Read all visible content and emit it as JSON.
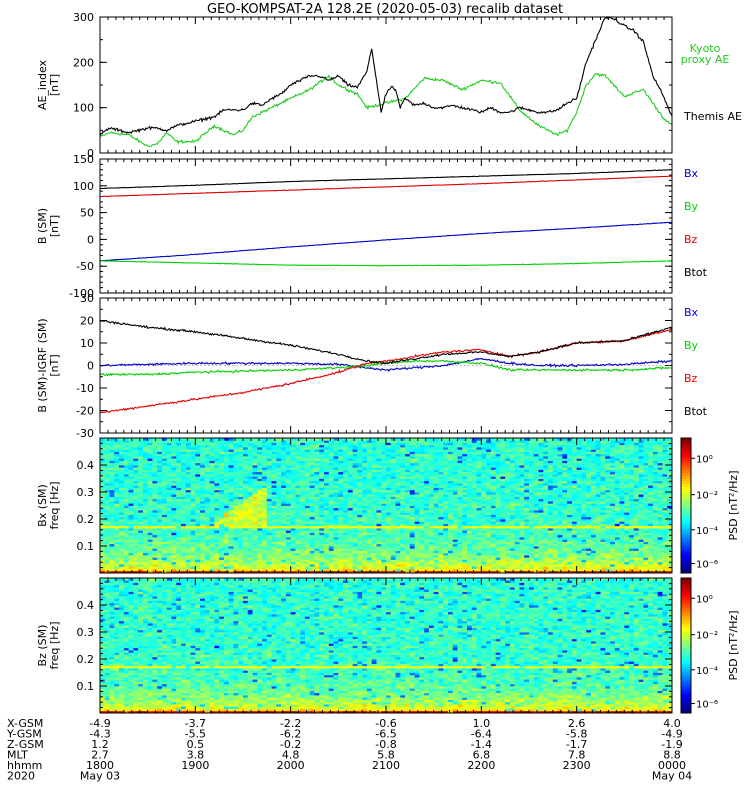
{
  "title": "GEO-KOMPSAT-2A 128.2E (2020-05-03) recalib dataset",
  "colors": {
    "black": "#000000",
    "red": "#e00000",
    "green": "#00d000",
    "blue": "#0000c8",
    "kyoto": "#22cc22"
  },
  "chart_data": [
    {
      "type": "line",
      "panel": "ae_index",
      "ylabel": "AE_index\n[nT]",
      "ylim": [
        0,
        300
      ],
      "yticks": [
        0,
        100,
        200,
        300
      ],
      "series": [
        {
          "name": "Themis AE",
          "color": "#000000",
          "x": [
            18.0,
            18.1,
            18.2,
            18.3,
            18.4,
            18.5,
            18.6,
            18.7,
            18.8,
            18.9,
            19.0,
            19.1,
            19.2,
            19.3,
            19.4,
            19.5,
            19.6,
            19.7,
            19.8,
            19.9,
            20.0,
            20.1,
            20.2,
            20.3,
            20.4,
            20.5,
            20.6,
            20.7,
            20.8,
            20.85,
            20.9,
            20.95,
            21.0,
            21.05,
            21.1,
            21.15,
            21.2,
            21.3,
            21.4,
            21.5,
            21.6,
            21.7,
            21.8,
            21.9,
            22.0,
            22.1,
            22.2,
            22.3,
            22.4,
            22.5,
            22.6,
            22.7,
            22.8,
            22.9,
            23.0,
            23.1,
            23.2,
            23.3,
            23.4,
            23.5,
            23.6,
            23.7,
            23.8,
            23.9,
            24.0
          ],
          "y": [
            40,
            55,
            50,
            45,
            50,
            55,
            55,
            50,
            60,
            65,
            70,
            75,
            80,
            95,
            95,
            95,
            110,
            105,
            120,
            130,
            150,
            160,
            170,
            170,
            160,
            170,
            150,
            145,
            180,
            230,
            160,
            90,
            130,
            145,
            140,
            100,
            120,
            105,
            110,
            100,
            100,
            105,
            100,
            95,
            90,
            100,
            90,
            90,
            100,
            95,
            90,
            90,
            95,
            110,
            120,
            200,
            250,
            300,
            295,
            280,
            270,
            245,
            170,
            130,
            80
          ]
        }
      ]
    },
    {
      "type": "line",
      "panel": "b_sm",
      "ylabel": "B (SM)\n[nT]",
      "ylim": [
        -100,
        150
      ],
      "yticks": [
        -100,
        -50,
        0,
        50,
        100,
        150
      ],
      "series": [
        {
          "name": "Bx",
          "color": "#0000c8",
          "x": [
            18,
            19,
            20,
            21,
            22,
            23,
            24
          ],
          "y": [
            -40,
            -28,
            -14,
            -1,
            11,
            21,
            32
          ]
        },
        {
          "name": "By",
          "color": "#00d000",
          "x": [
            18,
            19,
            20,
            21,
            22,
            23,
            24
          ],
          "y": [
            -40,
            -44,
            -48,
            -49,
            -48,
            -45,
            -40
          ]
        },
        {
          "name": "Bz",
          "color": "#e00000",
          "x": [
            18,
            19,
            20,
            21,
            22,
            23,
            24
          ],
          "y": [
            80,
            86,
            92,
            98,
            104,
            111,
            118
          ]
        },
        {
          "name": "Btot",
          "color": "#000000",
          "x": [
            18,
            19,
            20,
            21,
            22,
            23,
            24
          ],
          "y": [
            95,
            101,
            108,
            113,
            118,
            123,
            130
          ]
        }
      ]
    },
    {
      "type": "line",
      "panel": "b_minus_igrf",
      "ylabel": "B (SM)-IGRF (SM)\n[nT]",
      "ylim": [
        -30,
        30
      ],
      "yticks": [
        -30,
        -20,
        -10,
        0,
        10,
        20,
        30
      ],
      "series": [
        {
          "name": "Bx",
          "color": "#0000c8",
          "x": [
            18,
            18.5,
            19,
            19.5,
            20,
            20.5,
            20.8,
            21,
            21.3,
            21.6,
            22,
            22.3,
            22.6,
            23,
            23.5,
            24
          ],
          "y": [
            0,
            0.5,
            1,
            1,
            1,
            0.5,
            -1,
            -2,
            -1,
            0,
            3,
            1,
            0,
            0,
            0.5,
            2
          ]
        },
        {
          "name": "By",
          "color": "#00d000",
          "x": [
            18,
            18.5,
            19,
            19.5,
            20,
            20.5,
            20.8,
            21,
            21.3,
            21.6,
            22,
            22.3,
            22.6,
            23,
            23.5,
            24
          ],
          "y": [
            -4,
            -4,
            -3,
            -2.5,
            -2,
            -1,
            0,
            1,
            2,
            2,
            1,
            -2,
            -2,
            -2,
            -2,
            -1
          ]
        },
        {
          "name": "Bz",
          "color": "#e00000",
          "x": [
            18,
            18.5,
            19,
            19.5,
            20,
            20.5,
            20.8,
            21,
            21.3,
            21.6,
            22,
            22.3,
            22.6,
            23,
            23.5,
            24
          ],
          "y": [
            -21,
            -18,
            -15,
            -12,
            -8,
            -3,
            1,
            2,
            4,
            6,
            7,
            4,
            6,
            10,
            11,
            16
          ]
        },
        {
          "name": "Btot",
          "color": "#000000",
          "x": [
            18,
            18.5,
            19,
            19.5,
            20,
            20.5,
            20.8,
            21,
            21.3,
            21.6,
            22,
            22.3,
            22.6,
            23,
            23.5,
            24
          ],
          "y": [
            20,
            17,
            15,
            12,
            9,
            5,
            2,
            1,
            3,
            5,
            6,
            4,
            6,
            10,
            11,
            17
          ]
        }
      ]
    },
    {
      "type": "heatmap",
      "panel": "bx_spectrogram",
      "ylabel": "Bx (SM)\nfreq [Hz]",
      "ylim": [
        0,
        0.5
      ],
      "yticks": [
        0.1,
        0.2,
        0.3,
        0.4
      ],
      "colorbar_label": "PSD [nT²/Hz]",
      "colorbar_ticks": [
        "10⁰",
        "10⁻²",
        "10⁻⁴",
        "10⁻⁶"
      ]
    },
    {
      "type": "heatmap",
      "panel": "bz_spectrogram",
      "ylabel": "Bz (SM)\nfreq [Hz]",
      "ylim": [
        0,
        0.5
      ],
      "yticks": [
        0.1,
        0.2,
        0.3,
        0.4
      ],
      "colorbar_label": "PSD [nT²/Hz]",
      "colorbar_ticks": [
        "10⁰",
        "10⁻²",
        "10⁻⁴",
        "10⁻⁶"
      ]
    }
  ],
  "xlim": [
    18,
    24
  ],
  "legends": {
    "ae": [
      "Kyoto",
      "proxy AE",
      "Themis AE"
    ],
    "b": [
      "Bx",
      "By",
      "Bz",
      "Btot"
    ],
    "db": [
      "Bx",
      "By",
      "Bz",
      "Btot"
    ]
  },
  "ephemeris": {
    "row_labels": [
      "X-GSM",
      "Y-GSM",
      "Z-GSM",
      "MLT",
      "hhmm",
      "2020"
    ],
    "columns": [
      {
        "x": 18.0,
        "vals": [
          "-4.9",
          "-4.3",
          "1.2",
          "2.7",
          "1800",
          "May 03"
        ]
      },
      {
        "x": 19.0,
        "vals": [
          "-3.7",
          "-5.5",
          "0.5",
          "3.8",
          "1900",
          ""
        ]
      },
      {
        "x": 20.0,
        "vals": [
          "-2.2",
          "-6.2",
          "-0.2",
          "4.8",
          "2000",
          ""
        ]
      },
      {
        "x": 21.0,
        "vals": [
          "-0.6",
          "-6.5",
          "-0.8",
          "5.8",
          "2100",
          ""
        ]
      },
      {
        "x": 22.0,
        "vals": [
          "1.0",
          "-6.4",
          "-1.4",
          "6.8",
          "2200",
          ""
        ]
      },
      {
        "x": 23.0,
        "vals": [
          "2.6",
          "-5.8",
          "-1.7",
          "7.8",
          "2300",
          ""
        ]
      },
      {
        "x": 24.0,
        "vals": [
          "4.0",
          "-4.9",
          "-1.9",
          "8.8",
          "0000",
          "May 04"
        ]
      }
    ]
  }
}
